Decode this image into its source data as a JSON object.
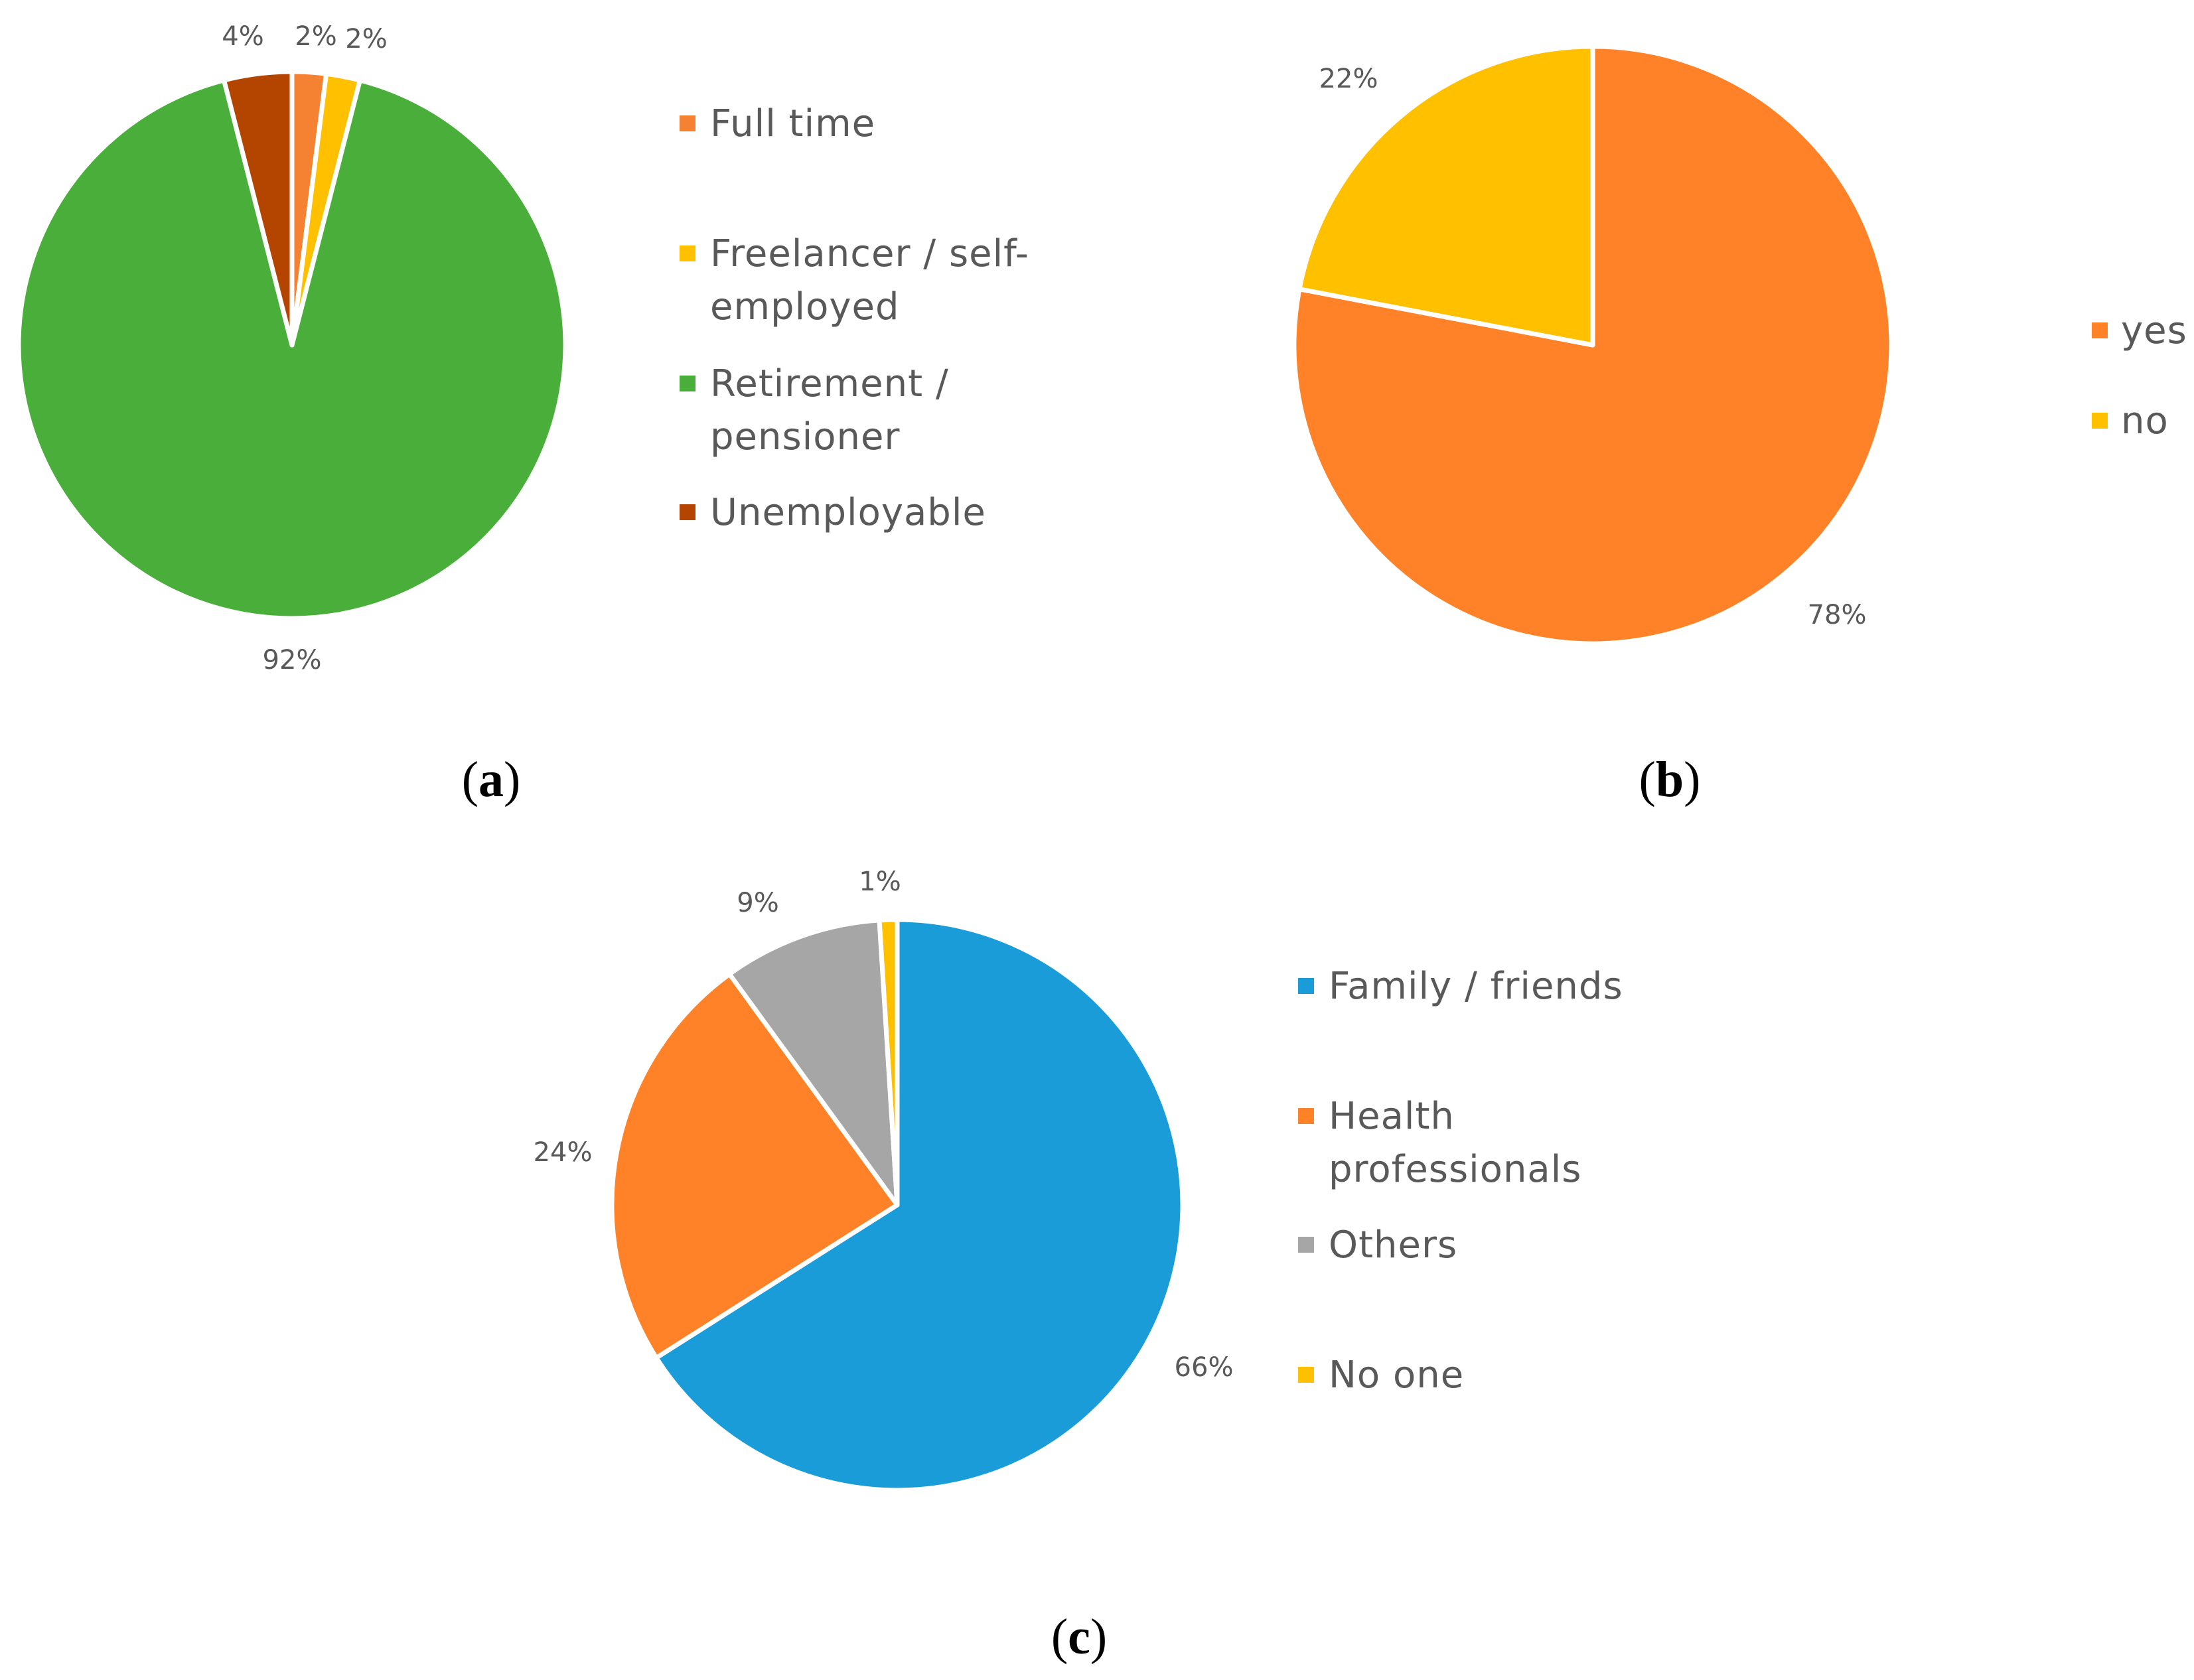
{
  "chart_data": [
    {
      "type": "pie",
      "panel_label": "a",
      "categories": [
        "Full time",
        "Freelancer / self-employed",
        "Retirement / pensioner",
        "Unemployable"
      ],
      "legend_lines": [
        [
          "Full time"
        ],
        [
          "Freelancer / self-",
          "employed"
        ],
        [
          "Retirement /",
          "pensioner"
        ],
        [
          "Unemployable"
        ]
      ],
      "values": [
        2,
        2,
        92,
        4
      ],
      "labels": [
        "2%",
        "2%",
        "92%",
        "4%"
      ],
      "colors": [
        "#F58232",
        "#FFC000",
        "#4AAE3B",
        "#B44500"
      ],
      "legend_placement": "right"
    },
    {
      "type": "pie",
      "panel_label": "b",
      "categories": [
        "yes",
        "no"
      ],
      "legend_lines": [
        [
          "yes"
        ],
        [
          "no"
        ]
      ],
      "values": [
        78,
        22
      ],
      "labels": [
        "78%",
        "22%"
      ],
      "colors": [
        "#FF8228",
        "#FFC000"
      ],
      "legend_placement": "right"
    },
    {
      "type": "pie",
      "panel_label": "c",
      "categories": [
        "Family / friends",
        "Health professionals",
        "Others",
        "No one"
      ],
      "legend_lines": [
        [
          "Family / friends"
        ],
        [
          "Health",
          "professionals"
        ],
        [
          "Others"
        ],
        [
          "No one"
        ]
      ],
      "values": [
        66,
        24,
        9,
        1
      ],
      "labels": [
        "66%",
        "24%",
        "9%",
        "1%"
      ],
      "colors": [
        "#1A9CD8",
        "#FF8228",
        "#A6A6A6",
        "#FFC000"
      ],
      "legend_placement": "right"
    }
  ]
}
